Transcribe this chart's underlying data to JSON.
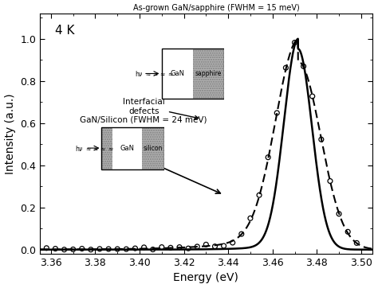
{
  "xlabel": "Energy (eV)",
  "ylabel": "Intensity (a.u.)",
  "xlim": [
    3.355,
    3.505
  ],
  "ylim": [
    -0.02,
    1.12
  ],
  "xticks": [
    3.36,
    3.38,
    3.4,
    3.42,
    3.44,
    3.46,
    3.48,
    3.5
  ],
  "yticks": [
    0.0,
    0.2,
    0.4,
    0.6,
    0.8,
    1.0
  ],
  "annotation_4K": "4 K",
  "label_sapphire": "As-grown GaN/sapphire (FWHM = 15 meV)",
  "label_silicon": "GaN/Silicon (FWHM = 24 meV)",
  "label_interfacial": "Interfacial\ndefects",
  "peak_sapphire": 3.4715,
  "fwhm_sapphire": 0.015,
  "peak_silicon": 3.4715,
  "fwhm_silicon": 0.024,
  "bg_color": "#ffffff"
}
